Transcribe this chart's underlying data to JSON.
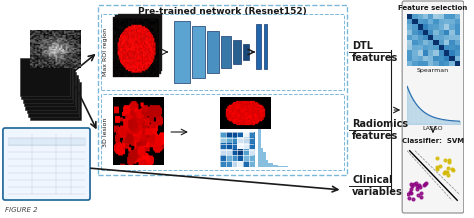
{
  "title": "FIGURE 2",
  "bg_color": "#ffffff",
  "pretrained_label": "Pre-trained network (Resnet152)",
  "feature_selection_label": "Feature selection",
  "max_roi_label": "Max ROI region",
  "lesion_3d_label": "3D lesion",
  "dtl_label": "DTL\nfeatures",
  "radiomics_label": "Radiomics\nfeatures",
  "clinical_label": "Clinical\nvariables",
  "spearman_label": "Spearman",
  "lasso_label": "LASSO",
  "classifier_label": "Classifier:  SVM",
  "dashed_box_color": "#7ab8d9",
  "arrow_color": "#1a1a1a",
  "text_color": "#1a1a1a",
  "nn_colors": [
    "#5ba3d0",
    "#4f93c0",
    "#4383b0",
    "#3770a0",
    "#2a5d90"
  ],
  "table_box_color": "#1a6496"
}
